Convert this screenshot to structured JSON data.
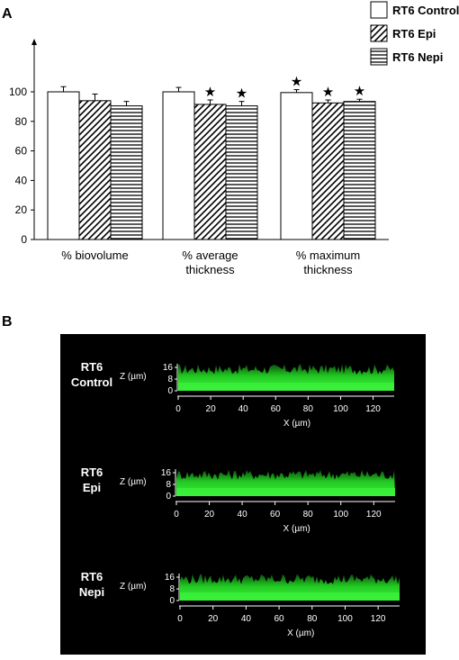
{
  "panels": {
    "a_letter": "A",
    "b_letter": "B"
  },
  "chart_data": {
    "type": "bar",
    "categories": [
      [
        "% biovolume"
      ],
      [
        "% average",
        "thickness"
      ],
      [
        "% maximum",
        "thickness"
      ]
    ],
    "series": [
      {
        "name": "RT6 Control",
        "pattern": "solid",
        "values": [
          100,
          100,
          99.5
        ],
        "errors": [
          3.5,
          3,
          2
        ]
      },
      {
        "name": "RT6 Epi",
        "pattern": "diagonal",
        "values": [
          94,
          91.5,
          92.5
        ],
        "errors": [
          4.5,
          3,
          2
        ]
      },
      {
        "name": "RT6 Nepi",
        "pattern": "horizontal",
        "values": [
          90.5,
          90.5,
          93.5
        ],
        "errors": [
          3,
          3,
          1.5
        ]
      }
    ],
    "significance": [
      {
        "category": 1,
        "series": 1,
        "symbol": "★"
      },
      {
        "category": 1,
        "series": 2,
        "symbol": "★"
      },
      {
        "category": 2,
        "series": 0,
        "symbol": "★"
      },
      {
        "category": 2,
        "series": 1,
        "symbol": "★"
      },
      {
        "category": 2,
        "series": 2,
        "symbol": "★"
      }
    ],
    "yticks": [
      0,
      20,
      40,
      60,
      80,
      100
    ],
    "ylim": [
      0,
      130
    ],
    "xlabel": "",
    "ylabel": "",
    "legend_position": "top-right"
  },
  "images": {
    "background": "#000000",
    "signal_color": "#2ee62e",
    "z_axis_label": "Z (µm)",
    "x_axis_label": "X (µm)",
    "z_ticks": [
      "16",
      "8",
      "0"
    ],
    "x_ticks": [
      "0",
      "20",
      "40",
      "60",
      "80",
      "100",
      "120"
    ],
    "samples": [
      {
        "line1": "RT6",
        "line2": "Control"
      },
      {
        "line1": "RT6",
        "line2": "Epi"
      },
      {
        "line1": "RT6",
        "line2": "Nepi"
      }
    ]
  }
}
